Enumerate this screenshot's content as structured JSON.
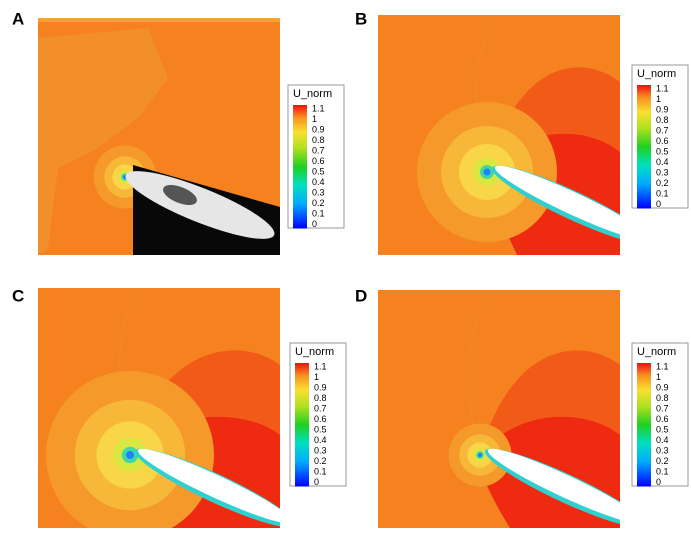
{
  "panels": [
    {
      "label": "A"
    },
    {
      "label": "B"
    },
    {
      "label": "C"
    },
    {
      "label": "D"
    }
  ],
  "colorbar": {
    "title": "U_norm",
    "ticks": [
      1.1,
      1,
      0.9,
      0.8,
      0.7,
      0.6,
      0.5,
      0.4,
      0.3,
      0.2,
      0.1,
      0
    ]
  }
}
